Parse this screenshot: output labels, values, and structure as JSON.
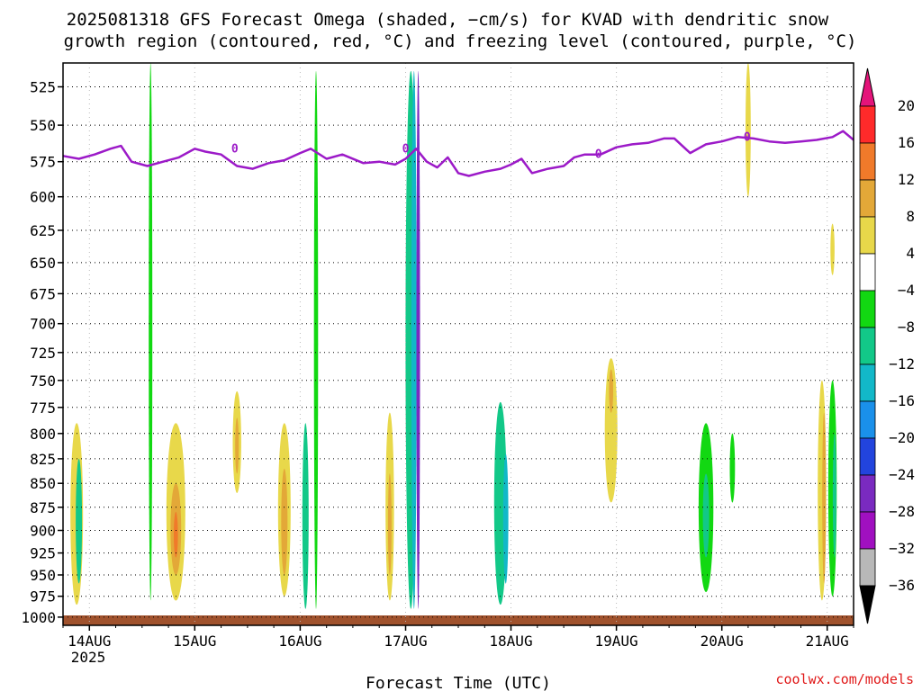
{
  "chart_data": {
    "type": "heatmap",
    "title": [
      "2025081318 GFS Forecast Omega (shaded, −cm/s) for KVAD with dendritic snow",
      "growth region (contoured, red, °C) and freezing level (contoured, purple, °C)"
    ],
    "xlabel": "Forecast Time (UTC)",
    "x_ticks": [
      {
        "label": "14AUG",
        "day": 0
      },
      {
        "label": "15AUG",
        "day": 1
      },
      {
        "label": "16AUG",
        "day": 2
      },
      {
        "label": "17AUG",
        "day": 3
      },
      {
        "label": "18AUG",
        "day": 4
      },
      {
        "label": "19AUG",
        "day": 5
      },
      {
        "label": "20AUG",
        "day": 6
      },
      {
        "label": "21AUG",
        "day": 7
      }
    ],
    "x_year": "2025",
    "xlim_days": [
      -0.25,
      7.25
    ],
    "ylabel": "",
    "ylim": [
      1010,
      510
    ],
    "y_ticks": [
      525,
      550,
      575,
      600,
      625,
      650,
      675,
      700,
      725,
      750,
      775,
      800,
      825,
      850,
      875,
      900,
      925,
      950,
      975,
      1000
    ],
    "y_scale": "log-pressure",
    "grid": true,
    "colorbar": {
      "labels": [
        "20",
        "16",
        "12",
        "8",
        "4",
        "−4",
        "−8",
        "−12",
        "−16",
        "−20",
        "−24",
        "−28",
        "−32",
        "−36"
      ],
      "colors": [
        "#ff2a2a",
        "#f07a2a",
        "#e3a838",
        "#e8d84a",
        "#ffffff",
        "#12d812",
        "#12c888",
        "#12b8c8",
        "#1a90ea",
        "#2244dd",
        "#7a2ac0",
        "#a010c0",
        "#b8b8b8"
      ],
      "top_arrow_color": "#e4147a",
      "bottom_arrow_color": "#000000"
    },
    "freezing_level": {
      "label": "0",
      "color": "#9c1ac8",
      "points": [
        [
          -0.25,
          571
        ],
        [
          -0.1,
          573
        ],
        [
          0.05,
          570
        ],
        [
          0.2,
          566
        ],
        [
          0.3,
          564
        ],
        [
          0.4,
          575
        ],
        [
          0.55,
          578
        ],
        [
          0.7,
          575
        ],
        [
          0.85,
          572
        ],
        [
          1.0,
          566
        ],
        [
          1.1,
          568
        ],
        [
          1.25,
          570
        ],
        [
          1.4,
          578
        ],
        [
          1.55,
          580
        ],
        [
          1.7,
          576
        ],
        [
          1.85,
          574
        ],
        [
          2.0,
          569
        ],
        [
          2.1,
          566
        ],
        [
          2.25,
          573
        ],
        [
          2.4,
          570
        ],
        [
          2.6,
          576
        ],
        [
          2.75,
          575
        ],
        [
          2.9,
          577
        ],
        [
          3.0,
          573
        ],
        [
          3.1,
          566
        ],
        [
          3.2,
          575
        ],
        [
          3.3,
          579
        ],
        [
          3.4,
          572
        ],
        [
          3.5,
          583
        ],
        [
          3.6,
          585
        ],
        [
          3.75,
          582
        ],
        [
          3.9,
          580
        ],
        [
          4.0,
          577
        ],
        [
          4.1,
          573
        ],
        [
          4.2,
          583
        ],
        [
          4.35,
          580
        ],
        [
          4.5,
          578
        ],
        [
          4.6,
          572
        ],
        [
          4.7,
          570
        ],
        [
          4.85,
          570
        ],
        [
          5.0,
          565
        ],
        [
          5.15,
          563
        ],
        [
          5.3,
          562
        ],
        [
          5.45,
          559
        ],
        [
          5.55,
          559
        ],
        [
          5.7,
          569
        ],
        [
          5.85,
          563
        ],
        [
          6.0,
          561
        ],
        [
          6.15,
          558
        ],
        [
          6.3,
          559
        ],
        [
          6.45,
          561
        ],
        [
          6.6,
          562
        ],
        [
          6.75,
          561
        ],
        [
          6.9,
          560
        ],
        [
          7.05,
          558
        ],
        [
          7.15,
          554
        ],
        [
          7.25,
          560
        ]
      ]
    },
    "omega_regions": [
      {
        "day": -0.12,
        "p": [
          790,
          985
        ],
        "w": 0.12,
        "cls": 1
      },
      {
        "day": -0.1,
        "p": [
          825,
          960
        ],
        "w": 0.06,
        "cls": -2
      },
      {
        "day": 0.82,
        "p": [
          790,
          980
        ],
        "w": 0.18,
        "cls": 1
      },
      {
        "day": 0.82,
        "p": [
          850,
          950
        ],
        "w": 0.1,
        "cls": 2
      },
      {
        "day": 0.82,
        "p": [
          880,
          930
        ],
        "w": 0.04,
        "cls": 3
      },
      {
        "day": 0.58,
        "p": [
          510,
          980
        ],
        "w": 0.02,
        "cls": -1
      },
      {
        "day": 1.4,
        "p": [
          760,
          860
        ],
        "w": 0.08,
        "cls": 1
      },
      {
        "day": 1.4,
        "p": [
          785,
          840
        ],
        "w": 0.03,
        "cls": 2
      },
      {
        "day": 1.85,
        "p": [
          790,
          975
        ],
        "w": 0.12,
        "cls": 1
      },
      {
        "day": 1.85,
        "p": [
          835,
          950
        ],
        "w": 0.06,
        "cls": 2
      },
      {
        "day": 2.05,
        "p": [
          790,
          990
        ],
        "w": 0.06,
        "cls": -2
      },
      {
        "day": 2.15,
        "p": [
          515,
          990
        ],
        "w": 0.04,
        "cls": -1
      },
      {
        "day": 2.85,
        "p": [
          780,
          980
        ],
        "w": 0.08,
        "cls": 1
      },
      {
        "day": 2.85,
        "p": [
          840,
          950
        ],
        "w": 0.03,
        "cls": 2
      },
      {
        "day": 3.05,
        "p": [
          515,
          990
        ],
        "w": 0.1,
        "cls": -2
      },
      {
        "day": 3.08,
        "p": [
          515,
          990
        ],
        "w": 0.05,
        "cls": -3
      },
      {
        "day": 3.12,
        "p": [
          515,
          990
        ],
        "w": 0.02,
        "cls": -6
      },
      {
        "day": 3.9,
        "p": [
          770,
          985
        ],
        "w": 0.12,
        "cls": -2
      },
      {
        "day": 3.95,
        "p": [
          820,
          960
        ],
        "w": 0.05,
        "cls": -3
      },
      {
        "day": 4.95,
        "p": [
          730,
          870
        ],
        "w": 0.12,
        "cls": 1
      },
      {
        "day": 4.95,
        "p": [
          740,
          780
        ],
        "w": 0.04,
        "cls": 2
      },
      {
        "day": 5.85,
        "p": [
          790,
          970
        ],
        "w": 0.14,
        "cls": -1
      },
      {
        "day": 5.85,
        "p": [
          840,
          930
        ],
        "w": 0.06,
        "cls": -2
      },
      {
        "day": 6.1,
        "p": [
          800,
          870
        ],
        "w": 0.05,
        "cls": -1
      },
      {
        "day": 6.95,
        "p": [
          750,
          980
        ],
        "w": 0.08,
        "cls": 1
      },
      {
        "day": 6.97,
        "p": [
          780,
          960
        ],
        "w": 0.03,
        "cls": 2
      },
      {
        "day": 7.05,
        "p": [
          750,
          975
        ],
        "w": 0.08,
        "cls": -1
      },
      {
        "day": 7.07,
        "p": [
          800,
          930
        ],
        "w": 0.03,
        "cls": -2
      },
      {
        "day": 6.25,
        "p": [
          510,
          600
        ],
        "w": 0.05,
        "cls": 1
      },
      {
        "day": 7.05,
        "p": [
          620,
          660
        ],
        "w": 0.04,
        "cls": 1
      }
    ]
  },
  "credit": "coolwx.com/models"
}
